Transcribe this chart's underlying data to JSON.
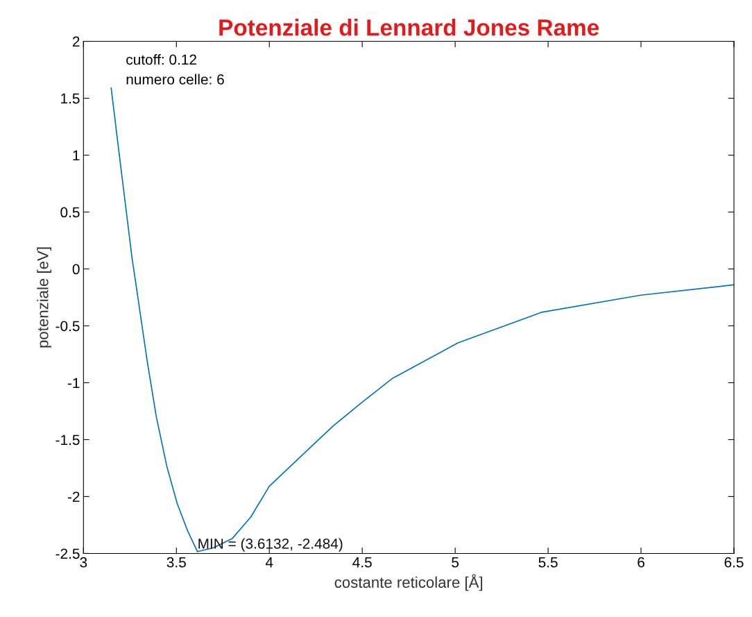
{
  "chart_data": {
    "type": "line",
    "title": "Potenziale di Lennard Jones Rame",
    "xlabel": "costante reticolare [Å]",
    "ylabel": "potenziale [eV]",
    "x": [
      3.149,
      3.187,
      3.224,
      3.261,
      3.299,
      3.343,
      3.392,
      3.448,
      3.504,
      3.56,
      3.6132,
      3.7,
      3.8,
      3.9,
      4.0,
      4.2,
      4.343,
      4.5,
      4.664,
      5.015,
      5.466,
      6.0,
      6.5
    ],
    "series": [
      {
        "color": "#0072bd",
        "values": [
          1.59,
          1.08,
          0.59,
          0.1,
          -0.32,
          -0.81,
          -1.3,
          -1.73,
          -2.06,
          -2.3,
          -2.484,
          -2.45,
          -2.37,
          -2.18,
          -1.91,
          -1.6,
          -1.38,
          -1.17,
          -0.96,
          -0.65,
          -0.38,
          -0.23,
          -0.14
        ]
      }
    ],
    "xlim": [
      3,
      6.5
    ],
    "xticks": [
      3,
      3.5,
      4,
      4.5,
      5,
      5.5,
      6,
      6.5
    ],
    "ylim": [
      -2.5,
      2
    ],
    "yticks": [
      -2.5,
      -2,
      -1.5,
      -1,
      -0.5,
      0,
      0.5,
      1,
      1.5,
      2
    ],
    "grid": false,
    "legend": false,
    "marker": "none",
    "line_style": "solid",
    "annotations": [
      {
        "text": "MIN = (3.6132, -2.484)",
        "x": 3.6132,
        "y": -2.484
      },
      "cutoff: 0.12\nnumero celle: 6"
    ]
  }
}
